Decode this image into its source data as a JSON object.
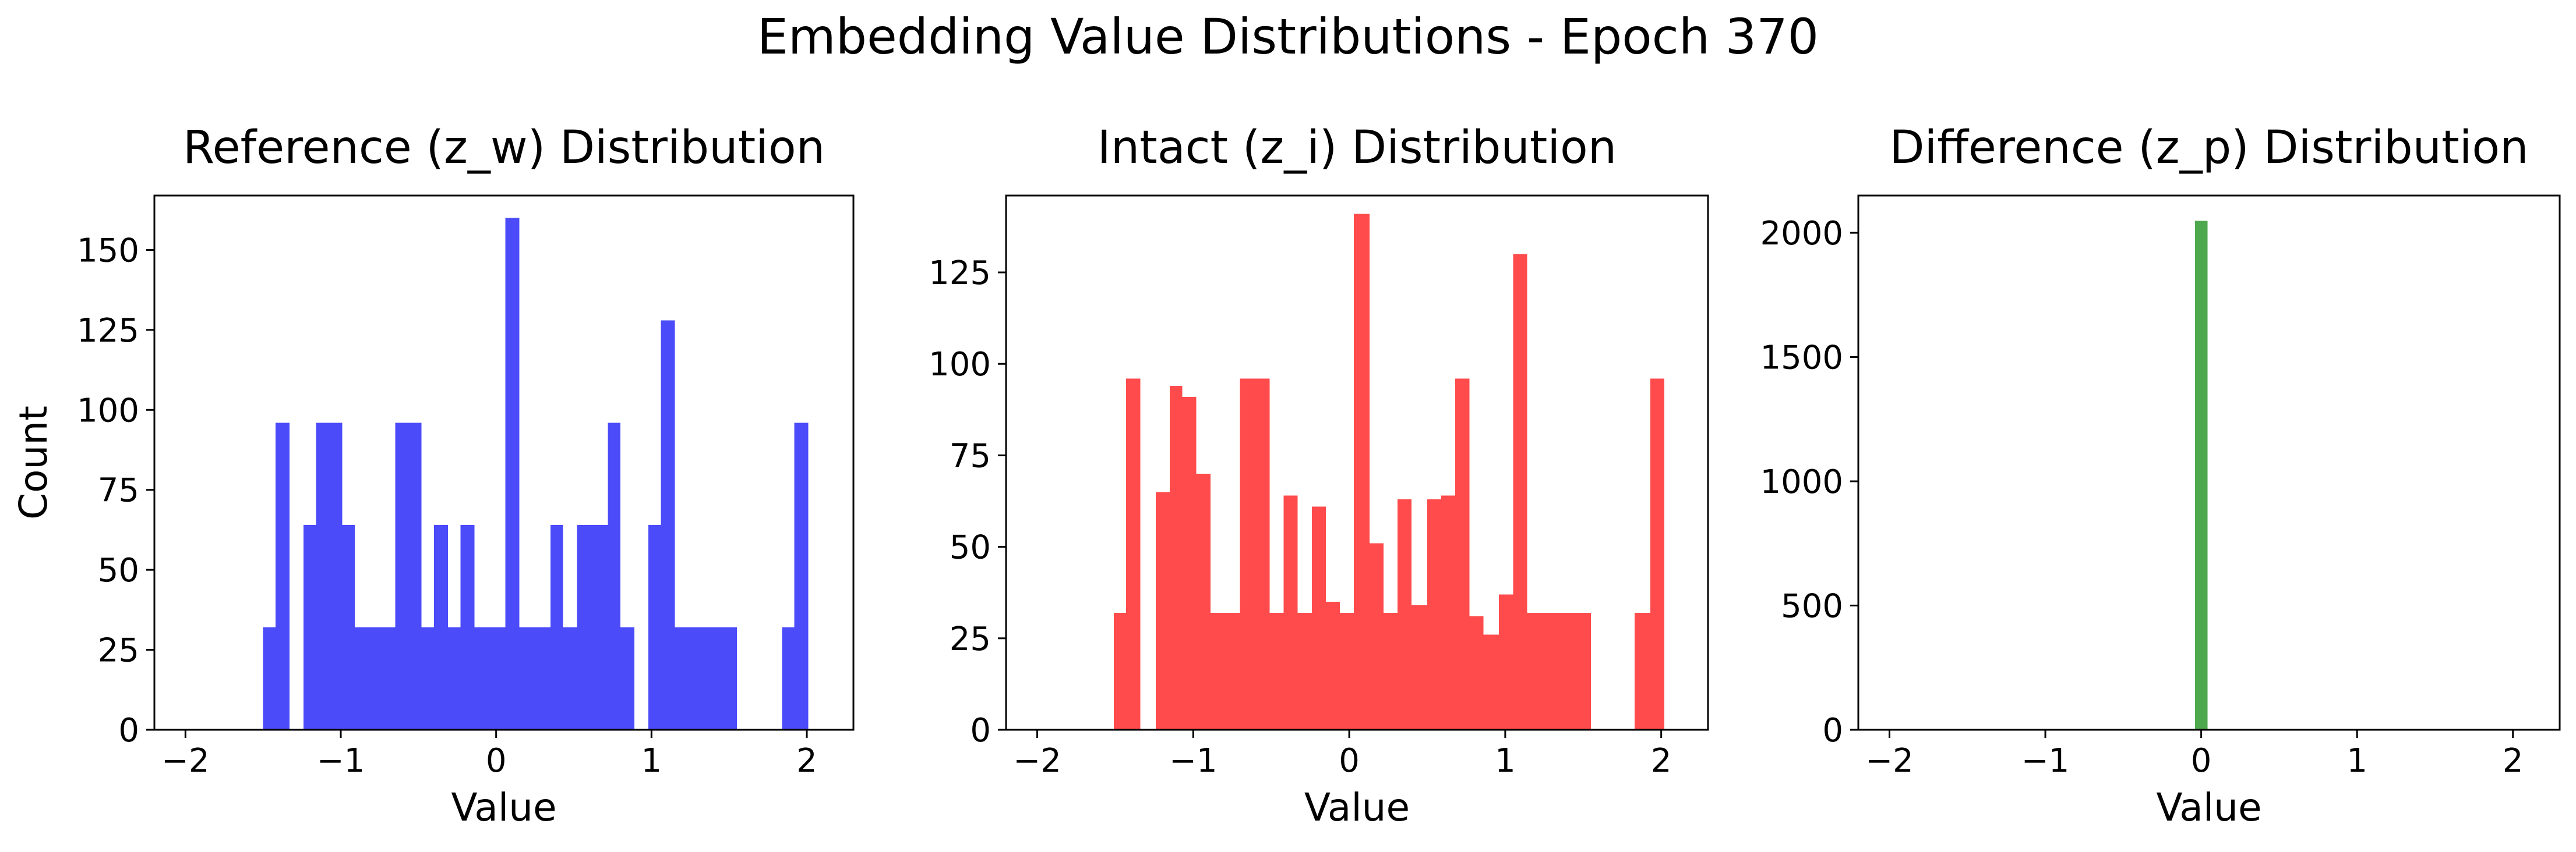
{
  "figure": {
    "title": "Embedding Value Distributions - Epoch 370"
  },
  "chart_data": [
    {
      "type": "bar",
      "title": "Reference (z_w) Distribution",
      "xlabel": "Value",
      "ylabel": "Count",
      "xlim": [
        -2.2,
        2.3
      ],
      "ylim": [
        0,
        167
      ],
      "xticks": [
        -2,
        -1,
        0,
        1,
        2
      ],
      "xtick_labels": [
        "−2",
        "−1",
        "0",
        "1",
        "2"
      ],
      "yticks": [
        0,
        25,
        50,
        75,
        100,
        125,
        150
      ],
      "ytick_labels": [
        "0",
        "25",
        "50",
        "75",
        "100",
        "125",
        "150"
      ],
      "color": "#4b4bfa",
      "bins": [
        {
          "x0": -1.5,
          "x1": -1.42,
          "value": 32
        },
        {
          "x0": -1.42,
          "x1": -1.33,
          "value": 96
        },
        {
          "x0": -1.24,
          "x1": -1.16,
          "value": 64
        },
        {
          "x0": -1.16,
          "x1": -0.99,
          "value": 96
        },
        {
          "x0": -0.99,
          "x1": -0.91,
          "value": 64
        },
        {
          "x0": -0.91,
          "x1": -0.65,
          "value": 32
        },
        {
          "x0": -0.65,
          "x1": -0.48,
          "value": 96
        },
        {
          "x0": -0.48,
          "x1": -0.4,
          "value": 32
        },
        {
          "x0": -0.4,
          "x1": -0.31,
          "value": 64
        },
        {
          "x0": -0.31,
          "x1": -0.23,
          "value": 32
        },
        {
          "x0": -0.23,
          "x1": -0.14,
          "value": 64
        },
        {
          "x0": -0.14,
          "x1": 0.06,
          "value": 32
        },
        {
          "x0": 0.06,
          "x1": 0.15,
          "value": 160
        },
        {
          "x0": 0.15,
          "x1": 0.35,
          "value": 32
        },
        {
          "x0": 0.35,
          "x1": 0.43,
          "value": 64
        },
        {
          "x0": 0.43,
          "x1": 0.52,
          "value": 32
        },
        {
          "x0": 0.52,
          "x1": 0.72,
          "value": 64
        },
        {
          "x0": 0.72,
          "x1": 0.8,
          "value": 96
        },
        {
          "x0": 0.8,
          "x1": 0.89,
          "value": 32
        },
        {
          "x0": 0.98,
          "x1": 1.06,
          "value": 64
        },
        {
          "x0": 1.06,
          "x1": 1.15,
          "value": 128
        },
        {
          "x0": 1.15,
          "x1": 1.55,
          "value": 32
        },
        {
          "x0": 1.84,
          "x1": 1.92,
          "value": 32
        },
        {
          "x0": 1.92,
          "x1": 2.01,
          "value": 96
        }
      ]
    },
    {
      "type": "bar",
      "title": "Intact (z_i) Distribution",
      "xlabel": "Value",
      "ylabel": "",
      "xlim": [
        -2.2,
        2.3
      ],
      "ylim": [
        0,
        146
      ],
      "xticks": [
        -2,
        -1,
        0,
        1,
        2
      ],
      "xtick_labels": [
        "−2",
        "−1",
        "0",
        "1",
        "2"
      ],
      "yticks": [
        0,
        25,
        50,
        75,
        100,
        125
      ],
      "ytick_labels": [
        "0",
        "25",
        "50",
        "75",
        "100",
        "125"
      ],
      "color": "#ff4b4b",
      "bins": [
        {
          "x0": -1.51,
          "x1": -1.43,
          "value": 32
        },
        {
          "x0": -1.43,
          "x1": -1.34,
          "value": 96
        },
        {
          "x0": -1.24,
          "x1": -1.15,
          "value": 65
        },
        {
          "x0": -1.15,
          "x1": -1.07,
          "value": 94
        },
        {
          "x0": -1.07,
          "x1": -0.98,
          "value": 91
        },
        {
          "x0": -0.98,
          "x1": -0.89,
          "value": 70
        },
        {
          "x0": -0.89,
          "x1": -0.7,
          "value": 32
        },
        {
          "x0": -0.7,
          "x1": -0.51,
          "value": 96
        },
        {
          "x0": -0.51,
          "x1": -0.42,
          "value": 32
        },
        {
          "x0": -0.42,
          "x1": -0.33,
          "value": 64
        },
        {
          "x0": -0.33,
          "x1": -0.24,
          "value": 32
        },
        {
          "x0": -0.24,
          "x1": -0.15,
          "value": 61
        },
        {
          "x0": -0.15,
          "x1": -0.06,
          "value": 35
        },
        {
          "x0": -0.06,
          "x1": 0.03,
          "value": 32
        },
        {
          "x0": 0.03,
          "x1": 0.13,
          "value": 141
        },
        {
          "x0": 0.13,
          "x1": 0.22,
          "value": 51
        },
        {
          "x0": 0.22,
          "x1": 0.31,
          "value": 32
        },
        {
          "x0": 0.31,
          "x1": 0.4,
          "value": 63
        },
        {
          "x0": 0.4,
          "x1": 0.5,
          "value": 34
        },
        {
          "x0": 0.5,
          "x1": 0.59,
          "value": 63
        },
        {
          "x0": 0.59,
          "x1": 0.68,
          "value": 64
        },
        {
          "x0": 0.68,
          "x1": 0.77,
          "value": 96
        },
        {
          "x0": 0.77,
          "x1": 0.86,
          "value": 31
        },
        {
          "x0": 0.86,
          "x1": 0.96,
          "value": 26
        },
        {
          "x0": 0.96,
          "x1": 1.05,
          "value": 37
        },
        {
          "x0": 1.05,
          "x1": 1.14,
          "value": 130
        },
        {
          "x0": 1.14,
          "x1": 1.55,
          "value": 32
        },
        {
          "x0": 1.83,
          "x1": 1.93,
          "value": 32
        },
        {
          "x0": 1.93,
          "x1": 2.02,
          "value": 96
        }
      ]
    },
    {
      "type": "bar",
      "title": "Difference (z_p) Distribution",
      "xlabel": "Value",
      "ylabel": "",
      "xlim": [
        -2.2,
        2.3
      ],
      "ylim": [
        0,
        2150
      ],
      "xticks": [
        -2,
        -1,
        0,
        1,
        2
      ],
      "xtick_labels": [
        "−2",
        "−1",
        "0",
        "1",
        "2"
      ],
      "yticks": [
        0,
        500,
        1000,
        1500,
        2000
      ],
      "ytick_labels": [
        "0",
        "500",
        "1000",
        "1500",
        "2000"
      ],
      "color": "#4ea84e",
      "bins": [
        {
          "x0": -0.04,
          "x1": 0.04,
          "value": 2048
        }
      ]
    }
  ]
}
